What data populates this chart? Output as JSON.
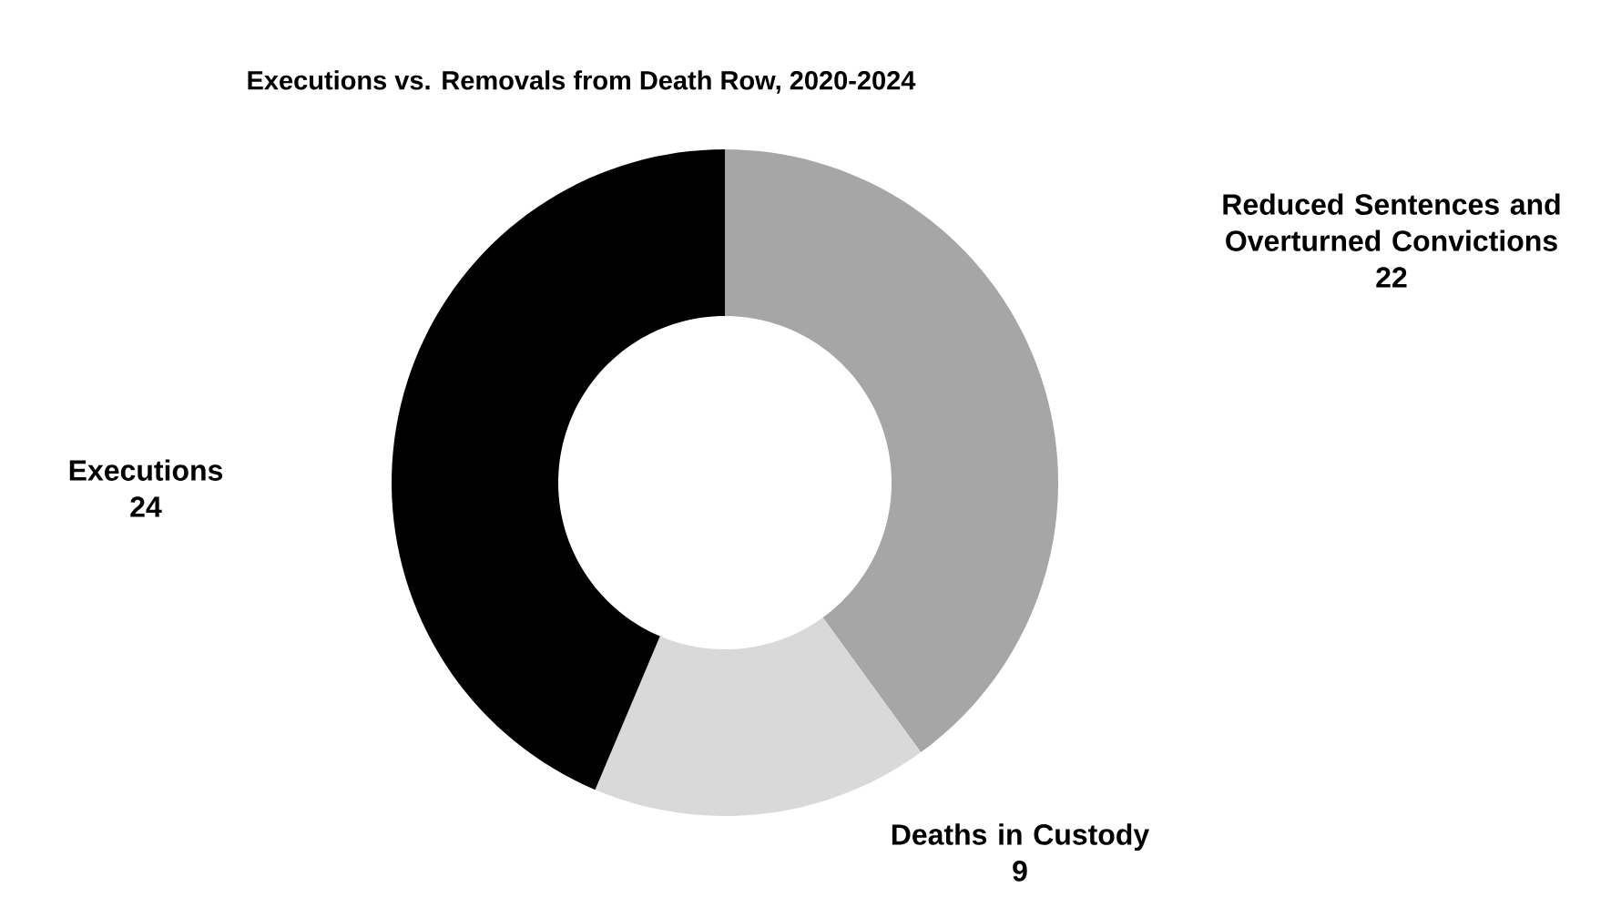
{
  "chart_data": {
    "type": "donut",
    "title": "Executions vs. Removals from Death Row, 2020-2024",
    "categories": [
      "Reduced Sentences and Overturned Convictions",
      "Deaths in Custody",
      "Executions"
    ],
    "values": [
      22,
      9,
      24
    ],
    "colors": [
      "#a6a6a6",
      "#d9d9d9",
      "#000000"
    ],
    "data_labels": true
  }
}
